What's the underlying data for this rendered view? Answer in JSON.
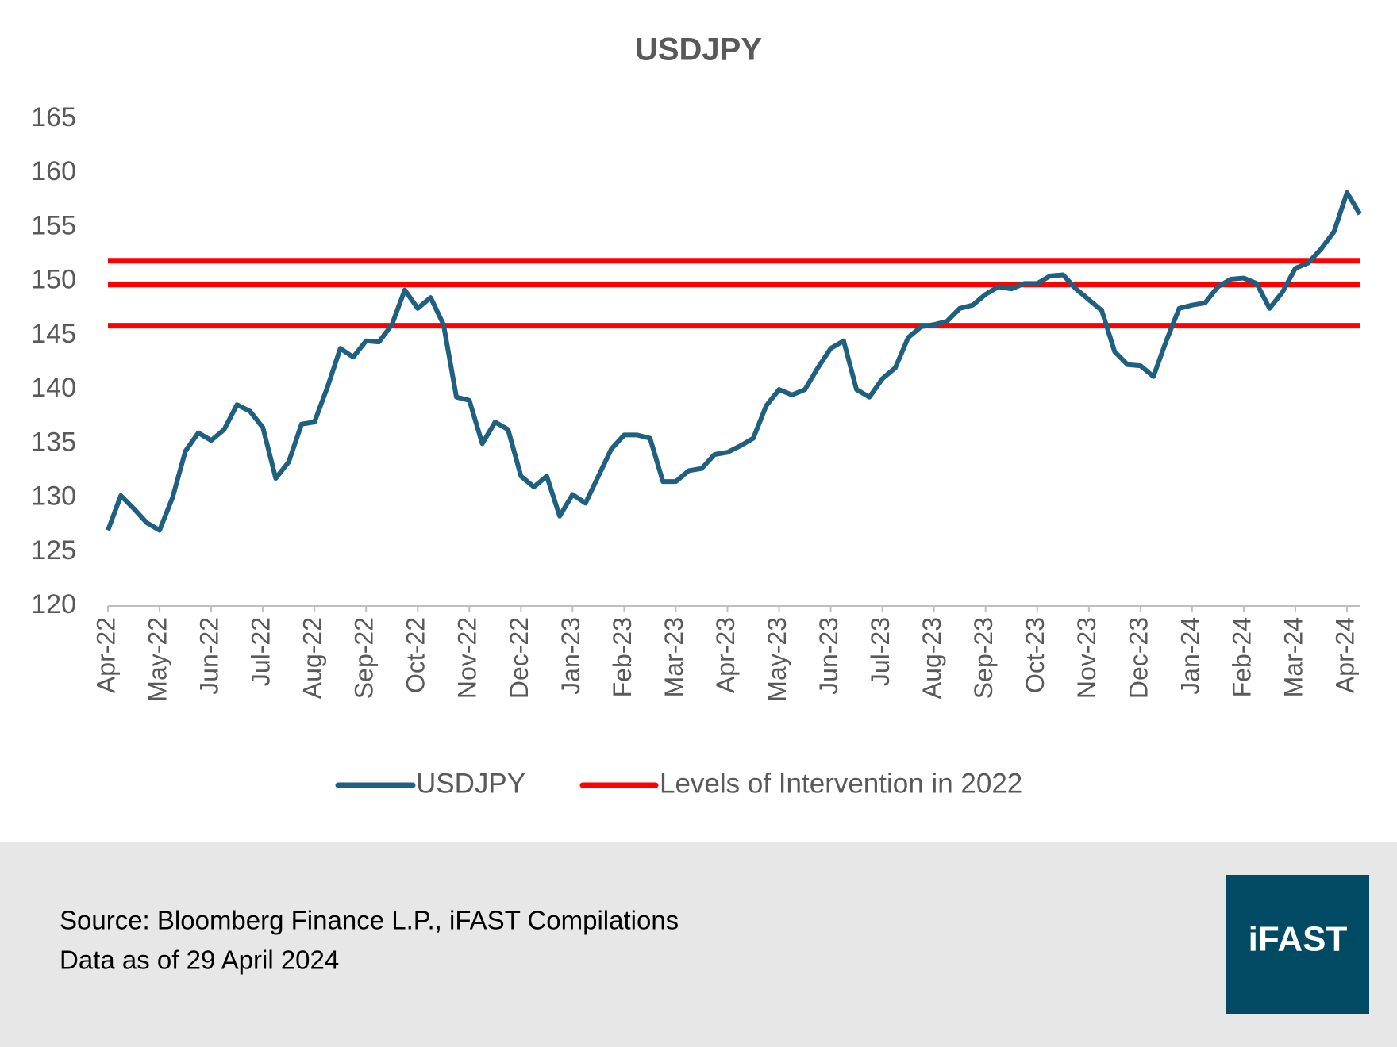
{
  "chart_data": {
    "type": "line",
    "title": "USDJPY",
    "categories": [
      "Apr-22",
      null,
      null,
      null,
      "May-22",
      null,
      null,
      null,
      "Jun-22",
      null,
      null,
      null,
      "Jul-22",
      null,
      null,
      null,
      "Aug-22",
      null,
      null,
      null,
      "Sep-22",
      null,
      null,
      null,
      "Oct-22",
      null,
      null,
      null,
      "Nov-22",
      null,
      null,
      null,
      "Dec-22",
      null,
      null,
      null,
      "Jan-23",
      null,
      null,
      null,
      "Feb-23",
      null,
      null,
      null,
      "Mar-23",
      null,
      null,
      null,
      "Apr-23",
      null,
      null,
      null,
      "May-23",
      null,
      null,
      null,
      "Jun-23",
      null,
      null,
      null,
      "Jul-23",
      null,
      null,
      null,
      "Aug-23",
      null,
      null,
      null,
      "Sep-23",
      null,
      null,
      null,
      "Oct-23",
      null,
      null,
      null,
      "Nov-23",
      null,
      null,
      null,
      "Dec-23",
      null,
      null,
      null,
      "Jan-24",
      null,
      null,
      null,
      "Feb-24",
      null,
      null,
      null,
      "Mar-24",
      null,
      null,
      null,
      "Apr-24",
      null
    ],
    "series": [
      {
        "name": "USDJPY",
        "color": "#1f5f7f",
        "values": [
          127,
          130.2,
          129,
          127.7,
          127,
          130,
          134.3,
          136,
          135.3,
          136.3,
          138.6,
          138,
          136.5,
          131.8,
          133.3,
          136.8,
          137,
          140.2,
          143.8,
          143,
          144.5,
          144.4,
          146,
          149.2,
          147.5,
          148.5,
          146,
          139.3,
          139,
          135,
          137,
          136.3,
          132,
          131,
          132,
          128.3,
          130.3,
          129.5,
          132,
          134.5,
          135.8,
          135.8,
          135.5,
          131.5,
          131.5,
          132.5,
          132.7,
          134,
          134.2,
          134.8,
          135.5,
          138.5,
          140,
          139.5,
          140,
          142,
          143.8,
          144.5,
          140,
          139.3,
          141,
          142,
          144.8,
          145.8,
          146,
          146.3,
          147.5,
          147.8,
          148.8,
          149.5,
          149.3,
          149.8,
          149.8,
          150.5,
          150.6,
          149.3,
          148.3,
          147.3,
          143.5,
          142.3,
          142.2,
          141.2,
          144.5,
          147.5,
          147.8,
          148,
          149.5,
          150.2,
          150.3,
          149.8,
          147.5,
          149,
          151.2,
          151.7,
          153,
          154.6,
          158.2,
          156.2
        ]
      }
    ],
    "reference_lines": {
      "name": "Levels of Intervention in 2022",
      "color": "#ff0000",
      "values": [
        151.9,
        149.7,
        145.9
      ]
    },
    "ylim": [
      120,
      165
    ],
    "yticks": [
      120,
      125,
      130,
      135,
      140,
      145,
      150,
      155,
      160,
      165
    ],
    "grid": false,
    "legend": "bottom"
  },
  "footer": {
    "source": "Source: Bloomberg Finance L.P., iFAST Compilations",
    "as_of": "Data as of 29 April 2024",
    "logo": "iFAST"
  }
}
